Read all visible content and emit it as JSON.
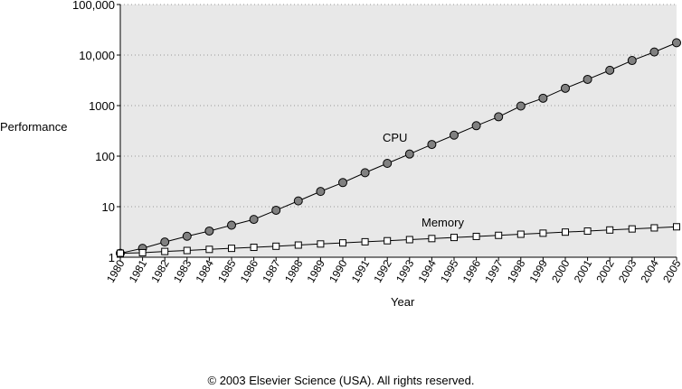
{
  "chart_data": {
    "type": "line",
    "xlabel": "Year",
    "ylabel": "Performance",
    "yscale": "log",
    "ylim": [
      1,
      100000
    ],
    "grid": true,
    "x": [
      "1980",
      "1981",
      "1982",
      "1983",
      "1984",
      "1985",
      "1986",
      "1987",
      "1988",
      "1989",
      "1990",
      "1991",
      "1992",
      "1993",
      "1994",
      "1995",
      "1996",
      "1997",
      "1998",
      "1999",
      "2000",
      "2001",
      "2002",
      "2003",
      "2004",
      "2005"
    ],
    "yticks": [
      "1",
      "10",
      "100",
      "1000",
      "10,000",
      "100,000"
    ],
    "series": [
      {
        "name": "CPU",
        "marker": "circle",
        "marker_color": "#808080",
        "values": [
          1.2,
          1.5,
          2.0,
          2.6,
          3.3,
          4.3,
          5.6,
          8.5,
          13,
          20,
          30,
          47,
          72,
          110,
          170,
          260,
          400,
          600,
          980,
          1400,
          2200,
          3300,
          5000,
          7800,
          11500,
          17500
        ]
      },
      {
        "name": "Memory",
        "marker": "square",
        "marker_color": "#ffffff",
        "values": [
          1.2,
          1.23,
          1.3,
          1.36,
          1.43,
          1.5,
          1.57,
          1.65,
          1.74,
          1.83,
          1.92,
          2.02,
          2.12,
          2.23,
          2.34,
          2.46,
          2.58,
          2.71,
          2.85,
          2.99,
          3.14,
          3.29,
          3.46,
          3.63,
          3.81,
          4.0
        ]
      }
    ],
    "annotations": [
      "CPU",
      "Memory"
    ]
  },
  "colors": {
    "plot_background": "#e8e8e8",
    "grid": "#999999"
  },
  "footer": "© 2003 Elsevier Science (USA). All rights reserved."
}
